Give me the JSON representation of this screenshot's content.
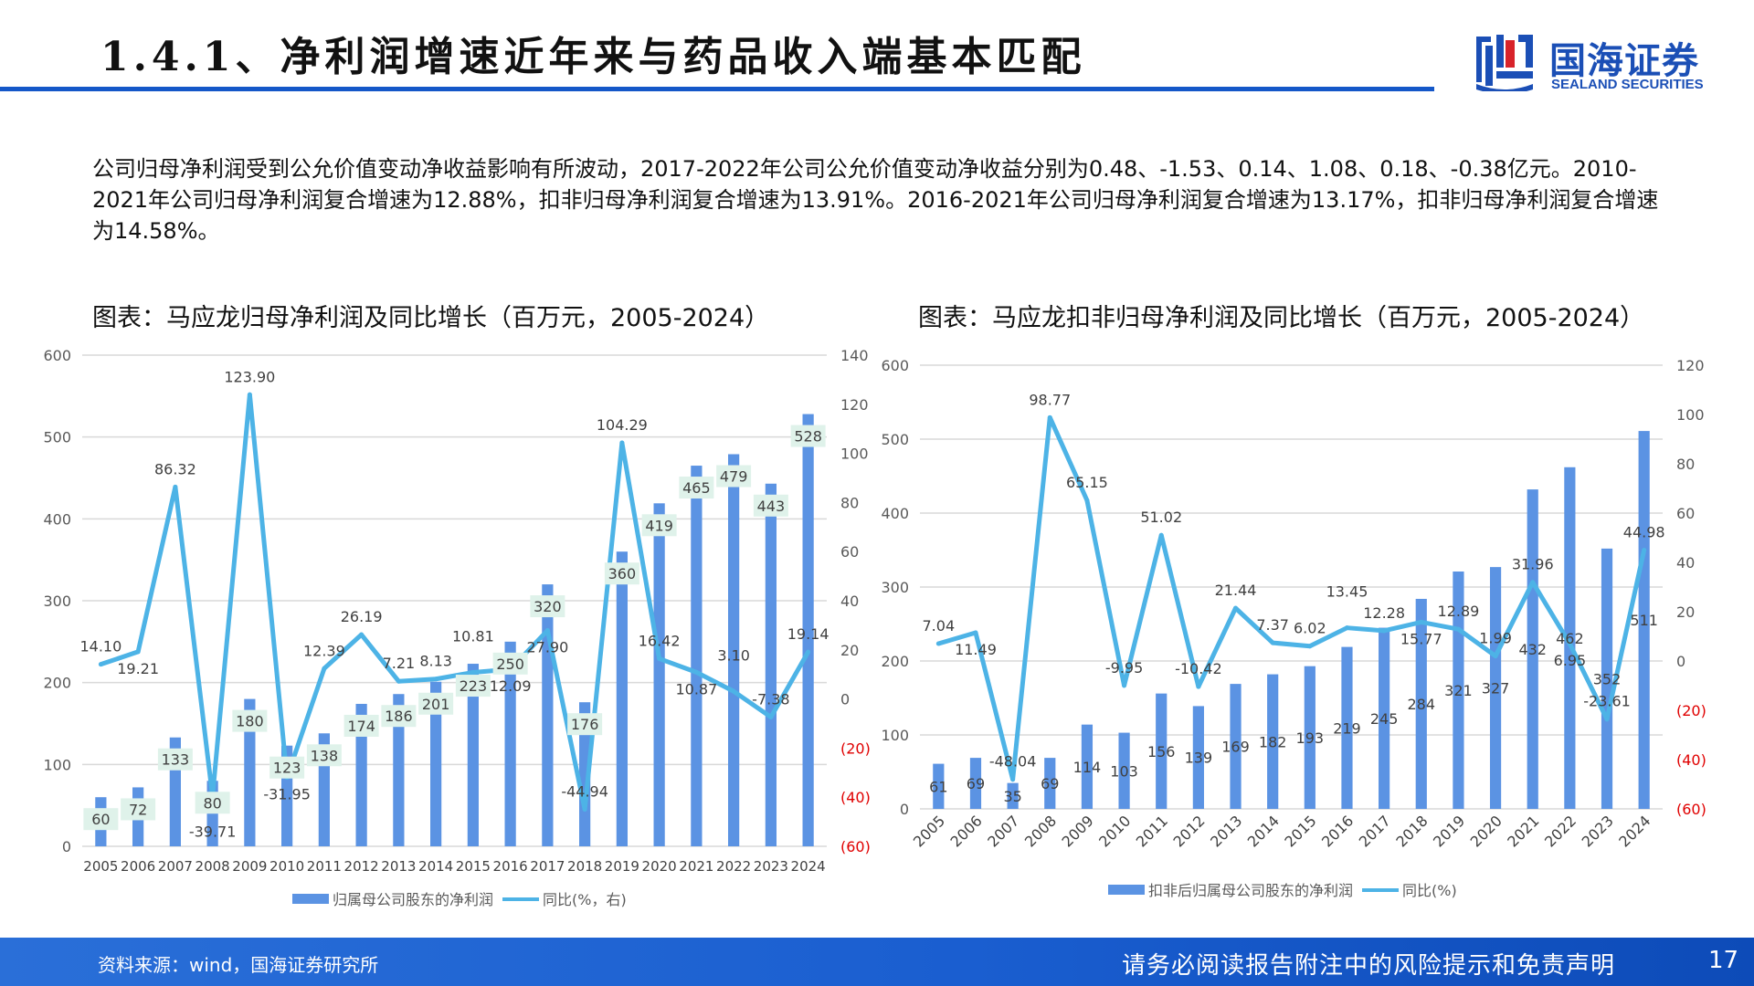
{
  "header": {
    "title": "1.4.1、净利润增速近年来与药品收入端基本匹配",
    "logo_cn": "国海证券",
    "logo_en": "SEALAND SECURITIES"
  },
  "paragraph": "公司归母净利润受到公允价值变动净收益影响有所波动，2017-2022年公司公允价值变动净收益分别为0.48、-1.53、0.14、1.08、0.18、-0.38亿元。2010-2021年公司归母净利润复合增速为12.88%，扣非归母净利润复合增速为13.91%。2016-2021年公司归母净利润复合增速为13.17%，扣非归母净利润复合增速为14.58%。",
  "colors": {
    "bar": "#5b93e3",
    "line": "#4db3e6",
    "label_box": "#dff2ea",
    "negative_tick": "#e00000",
    "accent": "#1457c8"
  },
  "chart_data": [
    {
      "type": "bar+line",
      "title": "图表：马应龙归母净利润及同比增长（百万元，2005-2024）",
      "categories": [
        "2005",
        "2006",
        "2007",
        "2008",
        "2009",
        "2010",
        "2011",
        "2012",
        "2013",
        "2014",
        "2015",
        "2016",
        "2017",
        "2018",
        "2019",
        "2020",
        "2021",
        "2022",
        "2023",
        "2024"
      ],
      "series": [
        {
          "name": "归属母公司股东的净利润",
          "type": "bar",
          "axis": "left",
          "values": [
            60,
            72,
            133,
            80,
            180,
            123,
            138,
            174,
            186,
            201,
            223,
            250,
            320,
            176,
            360,
            419,
            465,
            479,
            443,
            528
          ]
        },
        {
          "name": "同比(%，右)",
          "type": "line",
          "axis": "right",
          "values": [
            14.1,
            19.21,
            86.32,
            -39.71,
            123.9,
            -31.95,
            12.39,
            26.19,
            7.21,
            8.13,
            10.81,
            12.09,
            27.9,
            -44.94,
            104.29,
            16.42,
            10.87,
            3.1,
            -7.38,
            19.14
          ]
        }
      ],
      "ylim_left": [
        0,
        600
      ],
      "yticks_left": [
        "0",
        "100",
        "200",
        "300",
        "400",
        "500",
        "600"
      ],
      "ylim_right": [
        -60,
        140
      ],
      "yticks_right": [
        "(60)",
        "(40)",
        "(20)",
        "0",
        "20",
        "40",
        "60",
        "80",
        "100",
        "120",
        "140"
      ],
      "grid": true,
      "legend": "bottom",
      "x_labels_rotated": false
    },
    {
      "type": "bar+line",
      "title": "图表：马应龙扣非归母净利润及同比增长（百万元，2005-2024）",
      "categories": [
        "2005",
        "2006",
        "2007",
        "2008",
        "2009",
        "2010",
        "2011",
        "2012",
        "2013",
        "2014",
        "2015",
        "2016",
        "2017",
        "2018",
        "2019",
        "2020",
        "2021",
        "2022",
        "2023",
        "2024"
      ],
      "series": [
        {
          "name": "扣非后归属母公司股东的净利润",
          "type": "bar",
          "axis": "left",
          "values": [
            61,
            69,
            35,
            69,
            114,
            103,
            156,
            139,
            169,
            182,
            193,
            219,
            245,
            284,
            321,
            327,
            432,
            462,
            352,
            511
          ]
        },
        {
          "name": "同比(%)",
          "type": "line",
          "axis": "right",
          "values": [
            7.04,
            11.49,
            -48.04,
            98.77,
            65.15,
            -9.95,
            51.02,
            -10.42,
            21.44,
            7.37,
            6.02,
            13.45,
            12.28,
            15.77,
            12.89,
            1.99,
            31.96,
            6.95,
            -23.61,
            44.98
          ]
        }
      ],
      "ylim_left": [
        0,
        600
      ],
      "yticks_left": [
        "0",
        "100",
        "200",
        "300",
        "400",
        "500",
        "600"
      ],
      "ylim_right": [
        -60,
        120
      ],
      "yticks_right": [
        "(60)",
        "(40)",
        "(20)",
        "0",
        "20",
        "40",
        "60",
        "80",
        "100",
        "120"
      ],
      "grid": true,
      "legend": "bottom",
      "x_labels_rotated": true
    }
  ],
  "footer": {
    "source": "资料来源：wind，国海证券研究所",
    "disclaimer": "请务必阅读报告附注中的风险提示和免责声明",
    "page": "17"
  }
}
